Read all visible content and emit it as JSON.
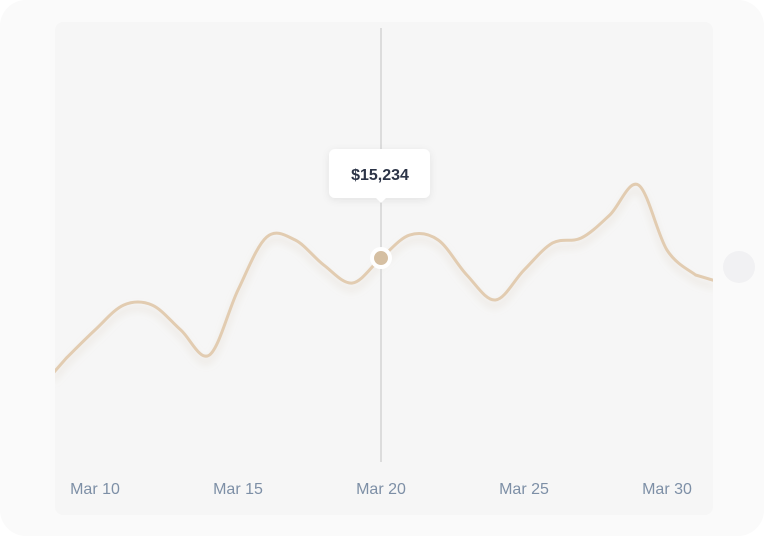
{
  "chart_data": {
    "type": "line",
    "categories": [
      null,
      "Mar 10",
      null,
      null,
      null,
      null,
      "Mar 15",
      null,
      null,
      null,
      null,
      "Mar 20",
      null,
      null,
      null,
      null,
      "Mar 25",
      null,
      null,
      null,
      null,
      "Mar 30",
      null
    ],
    "series": [
      {
        "color": "#e2ccb1",
        "values": [
          7770,
          9860,
          11720,
          11720,
          9860,
          7990,
          12850,
          16800,
          16580,
          14710,
          13370,
          15234,
          16950,
          16580,
          13970,
          12100,
          14340,
          16360,
          16730,
          18450,
          20690,
          15830,
          13970
        ],
        "value_labels": [
          null,
          null,
          null,
          null,
          null,
          null,
          null,
          null,
          null,
          null,
          null,
          "$15,234",
          null,
          null,
          null,
          null,
          null,
          null,
          null,
          null,
          null,
          null,
          null
        ]
      }
    ]
  }
}
